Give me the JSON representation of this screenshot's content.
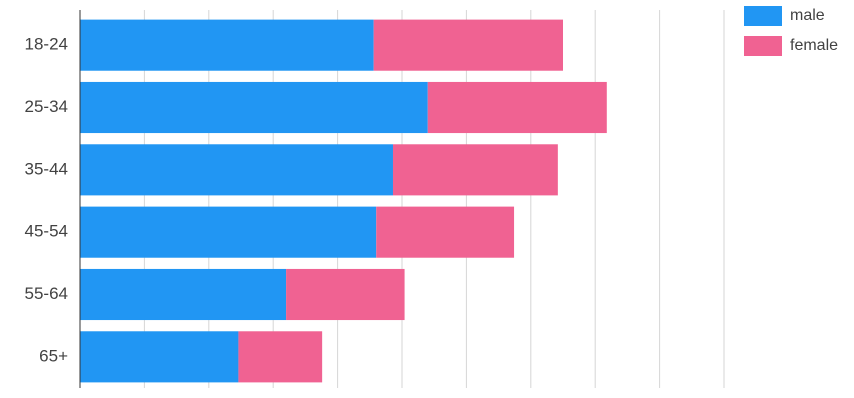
{
  "chart_data": {
    "type": "bar",
    "orientation": "horizontal",
    "stacked": true,
    "categories": [
      "18-24",
      "25-34",
      "35-44",
      "45-54",
      "55-64",
      "65+"
    ],
    "series": [
      {
        "name": "male",
        "color": "#2196f3",
        "values": [
          22.8,
          27.0,
          24.3,
          23.0,
          16.0,
          12.3
        ]
      },
      {
        "name": "female",
        "color": "#f06292",
        "values": [
          14.7,
          13.9,
          12.8,
          10.7,
          9.2,
          6.5
        ]
      }
    ],
    "xlim": [
      0,
      50
    ],
    "grid": true,
    "legend_position": "top-right"
  }
}
